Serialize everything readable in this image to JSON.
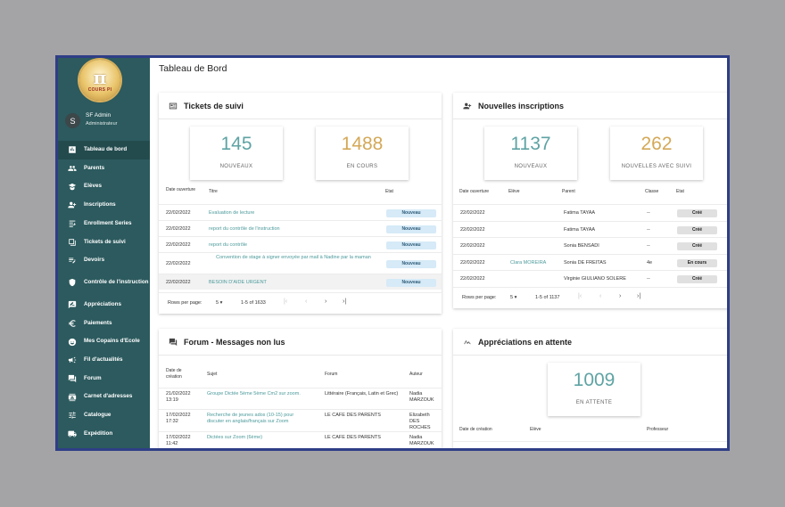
{
  "sidebar": {
    "logo_text": "COURS PI",
    "user": {
      "initial": "S",
      "name": "SF Admin",
      "role": "Administrateur"
    },
    "items": [
      {
        "label": "Tableau de bord",
        "icon": "chart-icon"
      },
      {
        "label": "Parents",
        "icon": "people-icon"
      },
      {
        "label": "Elèves",
        "icon": "student-icon"
      },
      {
        "label": "Inscriptions",
        "icon": "person-add-icon"
      },
      {
        "label": "Enrollment Series",
        "icon": "series-icon"
      },
      {
        "label": "Tickets de suivi",
        "icon": "ticket-icon"
      },
      {
        "label": "Devoirs",
        "icon": "edit-list-icon"
      },
      {
        "label": "Contrôle de l'instruction",
        "icon": "shield-icon"
      },
      {
        "label": "Appréciations",
        "icon": "rate-review-icon"
      },
      {
        "label": "Paiements",
        "icon": "euro-icon"
      },
      {
        "label": "Mes Copains d'Ecole",
        "icon": "face-icon"
      },
      {
        "label": "Fil d'actualités",
        "icon": "megaphone-icon"
      },
      {
        "label": "Forum",
        "icon": "forum-icon"
      },
      {
        "label": "Carnet d'adresses",
        "icon": "contacts-icon"
      },
      {
        "label": "Catalogue",
        "icon": "tune-icon"
      },
      {
        "label": "Expédition",
        "icon": "truck-icon"
      }
    ]
  },
  "main": {
    "title": "Tableau de Bord",
    "tickets": {
      "title": "Tickets de suivi",
      "stats": [
        {
          "value": "145",
          "label": "NOUVEAUX",
          "color": "#5fa3a4"
        },
        {
          "value": "1488",
          "label": "EN COURS",
          "color": "#d4a857"
        }
      ],
      "headers": {
        "date": "Date ouverture",
        "title": "Titre",
        "state": "Etat"
      },
      "rows": [
        {
          "date": "22/02/2022",
          "title": "Evaluation de lecture",
          "state": "Nouveau"
        },
        {
          "date": "22/02/2022",
          "title": "report du contrôle de l'instruction",
          "state": "Nouveau"
        },
        {
          "date": "22/02/2022",
          "title": "report du contrôle",
          "state": "Nouveau"
        },
        {
          "date": "22/02/2022",
          "title": "Convention de stage à signer envoyée par mail à Nadine par la maman",
          "state": "Nouveau"
        },
        {
          "date": "22/02/2022",
          "title": "BESOIN D'AIDE URGENT",
          "state": "Nouveau"
        }
      ],
      "pager": {
        "rows_label": "Rows per page:",
        "rows_value": "5",
        "range": "1-5 of 1633"
      }
    },
    "inscriptions": {
      "title": "Nouvelles inscriptions",
      "stats": [
        {
          "value": "1137",
          "label": "NOUVEAUX",
          "color": "#5fa3a4"
        },
        {
          "value": "262",
          "label": "NOUVELLES AVEC SUIVI",
          "color": "#d4a857"
        }
      ],
      "headers": {
        "date": "Date ouverture",
        "student": "Elève",
        "parent": "Parent",
        "class": "Classe",
        "state": "Etat"
      },
      "rows": [
        {
          "date": "22/02/2022",
          "student": "",
          "parent": "Fatima TAYAA",
          "class": "--",
          "state": "Créé"
        },
        {
          "date": "22/02/2022",
          "student": "",
          "parent": "Fatima TAYAA",
          "class": "--",
          "state": "Créé"
        },
        {
          "date": "22/02/2022",
          "student": "",
          "parent": "Sonia BENSADI",
          "class": "--",
          "state": "Créé"
        },
        {
          "date": "22/02/2022",
          "student": "Clara MOREIRA",
          "parent": "Sonia DE FREITAS",
          "class": "4e",
          "state": "En cours"
        },
        {
          "date": "22/02/2022",
          "student": "",
          "parent": "Virginie GIULIANO SOLERE",
          "class": "--",
          "state": "Créé"
        }
      ],
      "pager": {
        "rows_label": "Rows per page:",
        "rows_value": "5",
        "range": "1-5 of 1137"
      }
    },
    "forum": {
      "title": "Forum - Messages non lus",
      "headers": {
        "date": "Date de création",
        "subject": "Sujet",
        "forum": "Forum",
        "author": "Auteur"
      },
      "rows": [
        {
          "date": "21/02/2022 13:19",
          "subject": "Groupe Dictée 5ème 5ème Cm2 sur zoom.",
          "forum": "Littéraire (Français, Latin et Grec)",
          "author": "Nadia MARZOUK"
        },
        {
          "date": "17/02/2022 17:32",
          "subject": "Recherche de jeunes ados (10-15) pour discuter en anglais/français sur Zoom",
          "forum": "LE CAFE DES PARENTS",
          "author": "Elizabeth DES ROCHES"
        },
        {
          "date": "17/02/2022 11:42",
          "subject": "Dictées sur Zoom (6ème)",
          "forum": "LE CAFE DES PARENTS",
          "author": "Nadia MARZOUK"
        }
      ]
    },
    "appreciations": {
      "title": "Appréciations en attente",
      "stat": {
        "value": "1009",
        "label": "EN ATTENTE",
        "color": "#5fa3a4"
      },
      "headers": {
        "date": "Date de création",
        "student": "Elève",
        "teacher": "Professeur"
      }
    }
  }
}
